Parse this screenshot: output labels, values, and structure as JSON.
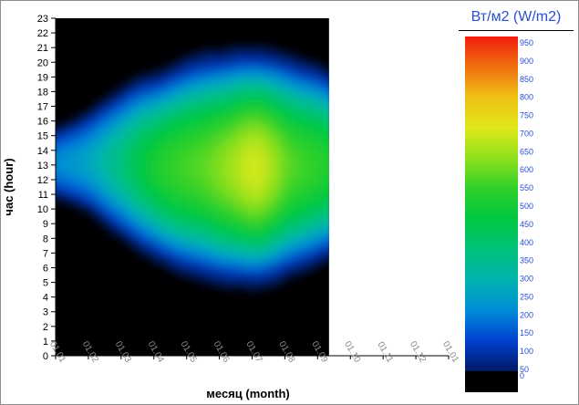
{
  "chart_data": {
    "type": "heatmap",
    "title": "",
    "xlabel": "месяц (month)",
    "ylabel": "час (hour)",
    "x_ticks": [
      "01.01",
      "01.02",
      "01.03",
      "01.04",
      "01.05",
      "01.06",
      "01.07",
      "01.08",
      "01.09",
      "01.10",
      "01.11",
      "01.12",
      "01.01"
    ],
    "y_ticks": [
      0,
      1,
      2,
      3,
      4,
      5,
      6,
      7,
      8,
      9,
      10,
      11,
      12,
      13,
      14,
      15,
      16,
      17,
      18,
      19,
      20,
      21,
      22,
      23
    ],
    "ylim": [
      0,
      23
    ],
    "data_month_range": [
      "01.01",
      "01.09"
    ],
    "nodata_color": "#000000",
    "colorbar": {
      "title": "Вт/м2 (W/m2)",
      "ticks": [
        0,
        50,
        100,
        150,
        200,
        250,
        300,
        350,
        400,
        450,
        500,
        550,
        600,
        650,
        700,
        750,
        800,
        850,
        900,
        950
      ],
      "min": 0,
      "max": 950,
      "stops": [
        "#001a66",
        "#0040d0",
        "#008cd8",
        "#00b4b0",
        "#00c27a",
        "#00c840",
        "#2ed02a",
        "#8ee01c",
        "#dfe81a",
        "#f0c014",
        "#f07010",
        "#f01c0c"
      ]
    },
    "envelope": {
      "description_values": "sunrise and sunset hour per month (decimal months since 01.01)",
      "months": [
        0,
        0.5,
        1,
        1.5,
        2,
        2.5,
        3,
        3.5,
        4,
        4.5,
        5,
        5.5,
        6,
        6.5,
        7,
        7.5,
        8,
        8.5,
        9
      ],
      "sunrise": [
        11.0,
        10.6,
        10.1,
        9.2,
        8.4,
        7.6,
        7.0,
        6.4,
        6.0,
        5.7,
        5.4,
        5.3,
        5.2,
        5.4,
        5.9,
        6.3,
        6.8,
        7.3,
        7.4
      ],
      "sunset": [
        15.3,
        15.8,
        16.4,
        17.2,
        17.9,
        18.6,
        18.8,
        19.3,
        19.8,
        20.1,
        20.2,
        20.4,
        20.4,
        20.3,
        20.0,
        19.6,
        19.3,
        18.6,
        18.5
      ],
      "peak": [
        180,
        200,
        230,
        290,
        350,
        420,
        480,
        520,
        540,
        560,
        600,
        640,
        690,
        640,
        560,
        530,
        510,
        470,
        430
      ]
    }
  }
}
